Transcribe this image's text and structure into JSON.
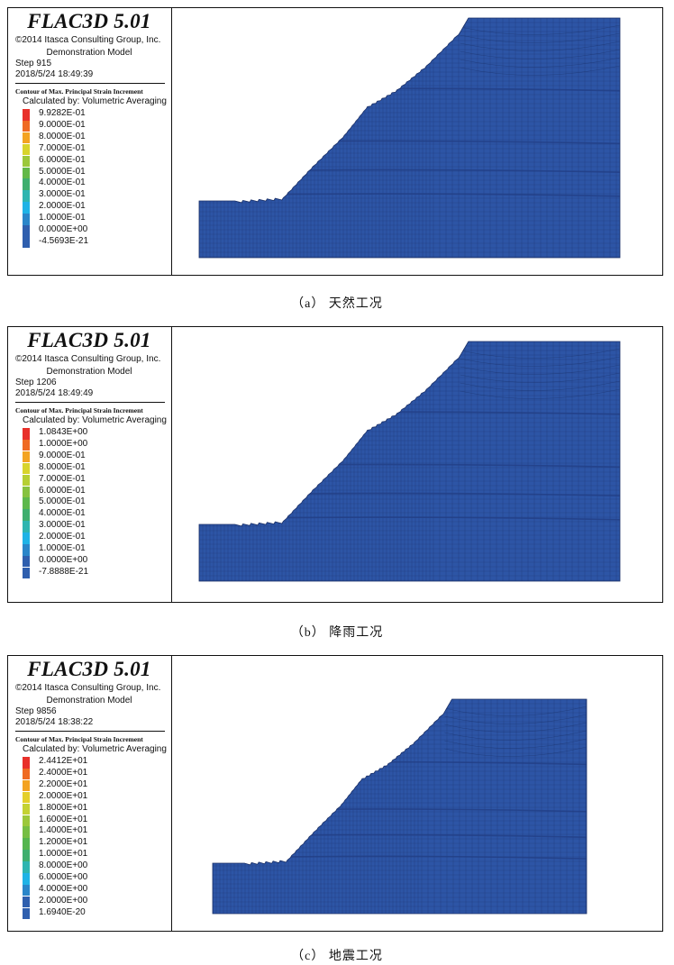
{
  "panels": [
    {
      "title": "FLAC3D 5.01",
      "copyright": "©2014 Itasca Consulting Group, Inc.",
      "model": "Demonstration Model",
      "step": "Step 915",
      "timestamp": "2018/5/24 18:49:39",
      "contour_title": "Contour of Max. Principal Strain Increment",
      "calc_method": "Calculated by: Volumetric Averaging",
      "legend": [
        {
          "label": "9.9282E-01",
          "color": "#e8302a"
        },
        {
          "label": "9.0000E-01",
          "color": "#ef6a23"
        },
        {
          "label": "8.0000E-01",
          "color": "#f3a322"
        },
        {
          "label": "7.0000E-01",
          "color": "#d8d42c"
        },
        {
          "label": "6.0000E-01",
          "color": "#9cc83b"
        },
        {
          "label": "5.0000E-01",
          "color": "#62b848"
        },
        {
          "label": "4.0000E-01",
          "color": "#3fae6e"
        },
        {
          "label": "3.0000E-01",
          "color": "#2eb5b0"
        },
        {
          "label": "2.0000E-01",
          "color": "#1fb3e6"
        },
        {
          "label": "1.0000E-01",
          "color": "#2a86c9"
        },
        {
          "label": "0.0000E+00",
          "color": "#2f5fae"
        },
        {
          "label": "-4.5693E-21",
          "color": "#2f5fae"
        }
      ],
      "caption": "（a） 天然工况"
    },
    {
      "title": "FLAC3D 5.01",
      "copyright": "©2014 Itasca Consulting Group, Inc.",
      "model": "Demonstration Model",
      "step": "Step 1206",
      "timestamp": "2018/5/24 18:49:49",
      "contour_title": "Contour of Max. Principal Strain Increment",
      "calc_method": "Calculated by: Volumetric Averaging",
      "legend": [
        {
          "label": "1.0843E+00",
          "color": "#e8302a"
        },
        {
          "label": "1.0000E+00",
          "color": "#ef6a23"
        },
        {
          "label": "9.0000E-01",
          "color": "#f3a322"
        },
        {
          "label": "8.0000E-01",
          "color": "#d8d42c"
        },
        {
          "label": "7.0000E-01",
          "color": "#b6cf33"
        },
        {
          "label": "6.0000E-01",
          "color": "#86c23f"
        },
        {
          "label": "5.0000E-01",
          "color": "#5db84c"
        },
        {
          "label": "4.0000E-01",
          "color": "#3fae6e"
        },
        {
          "label": "3.0000E-01",
          "color": "#2eb5b0"
        },
        {
          "label": "2.0000E-01",
          "color": "#1fb3e6"
        },
        {
          "label": "1.0000E-01",
          "color": "#2a86c9"
        },
        {
          "label": "0.0000E+00",
          "color": "#2f5fae"
        },
        {
          "label": "-7.8888E-21",
          "color": "#2f5fae"
        }
      ],
      "caption": "（b） 降雨工况"
    },
    {
      "title": "FLAC3D 5.01",
      "copyright": "©2014 Itasca Consulting Group, Inc.",
      "model": "Demonstration Model",
      "step": "Step 9856",
      "timestamp": "2018/5/24 18:38:22",
      "contour_title": "Contour of Max. Principal Strain Increment",
      "calc_method": "Calculated by: Volumetric Averaging",
      "legend": [
        {
          "label": "2.4412E+01",
          "color": "#e8302a"
        },
        {
          "label": "2.4000E+01",
          "color": "#ef6a23"
        },
        {
          "label": "2.2000E+01",
          "color": "#f3a322"
        },
        {
          "label": "2.0000E+01",
          "color": "#e4cf2a"
        },
        {
          "label": "1.8000E+01",
          "color": "#c4d233"
        },
        {
          "label": "1.6000E+01",
          "color": "#9cc83b"
        },
        {
          "label": "1.4000E+01",
          "color": "#76be44"
        },
        {
          "label": "1.2000E+01",
          "color": "#55b54f"
        },
        {
          "label": "1.0000E+01",
          "color": "#3fae6e"
        },
        {
          "label": "8.0000E+00",
          "color": "#2eb5b0"
        },
        {
          "label": "6.0000E+00",
          "color": "#1fb3e6"
        },
        {
          "label": "4.0000E+00",
          "color": "#2a86c9"
        },
        {
          "label": "2.0000E+00",
          "color": "#2f5fae"
        },
        {
          "label": "1.6940E-20",
          "color": "#2f5fae"
        }
      ],
      "caption": "（c） 地震工况"
    }
  ],
  "colors": {
    "mesh_fill": "#2d55a6",
    "mesh_line": "#1a2f66",
    "mesh_dark": "#223f86",
    "band_light": "#3fa9e0",
    "band_green": "#7fcf6a"
  }
}
